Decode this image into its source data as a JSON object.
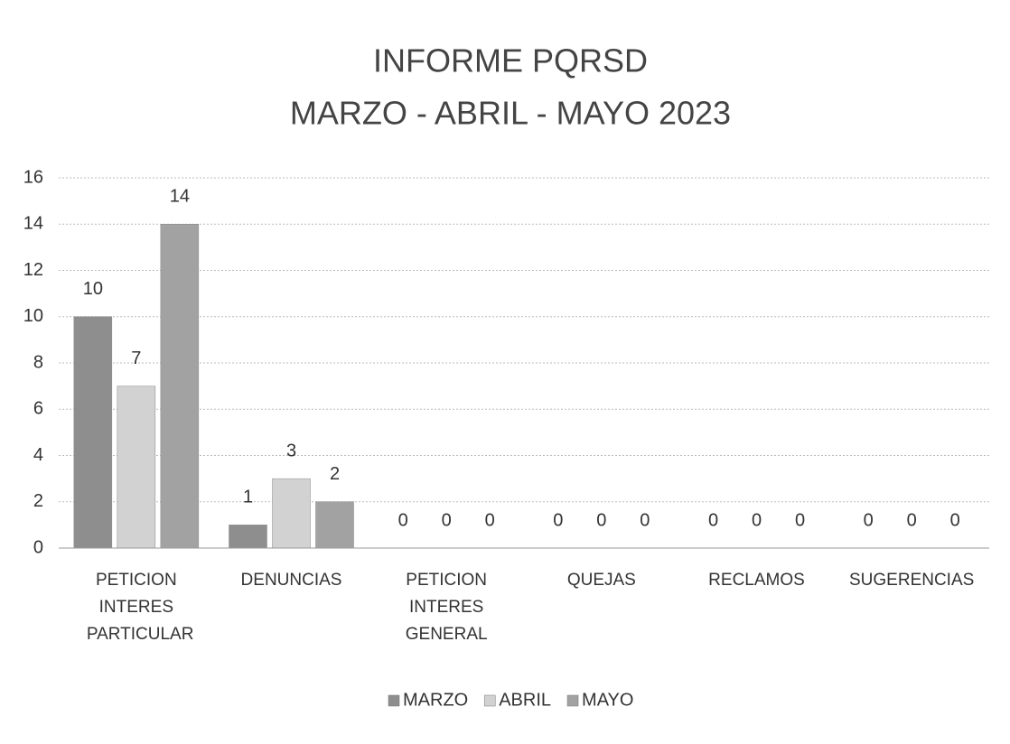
{
  "chart_data": {
    "type": "bar",
    "title": "INFORME PQRSD",
    "subtitle": "MARZO - ABRIL - MAYO 2023",
    "categories": [
      "PETICION INTERES PARTICULAR",
      "DENUNCIAS",
      "PETICION INTERES GENERAL",
      "QUEJAS",
      "RECLAMOS",
      "SUGERENCIAS"
    ],
    "series": [
      {
        "name": "MARZO",
        "color": "#8e8e8e",
        "values": [
          10,
          1,
          0,
          0,
          0,
          0
        ]
      },
      {
        "name": "ABRIL",
        "color": "#d2d2d2",
        "values": [
          7,
          3,
          0,
          0,
          0,
          0
        ]
      },
      {
        "name": "MAYO",
        "color": "#a2a2a2",
        "values": [
          14,
          2,
          0,
          0,
          0,
          0
        ]
      }
    ],
    "ylim": [
      0,
      16
    ],
    "yticks": [
      0,
      2,
      4,
      6,
      8,
      10,
      12,
      14,
      16
    ],
    "grid": true,
    "legend": "bottom",
    "data_labels": true
  }
}
